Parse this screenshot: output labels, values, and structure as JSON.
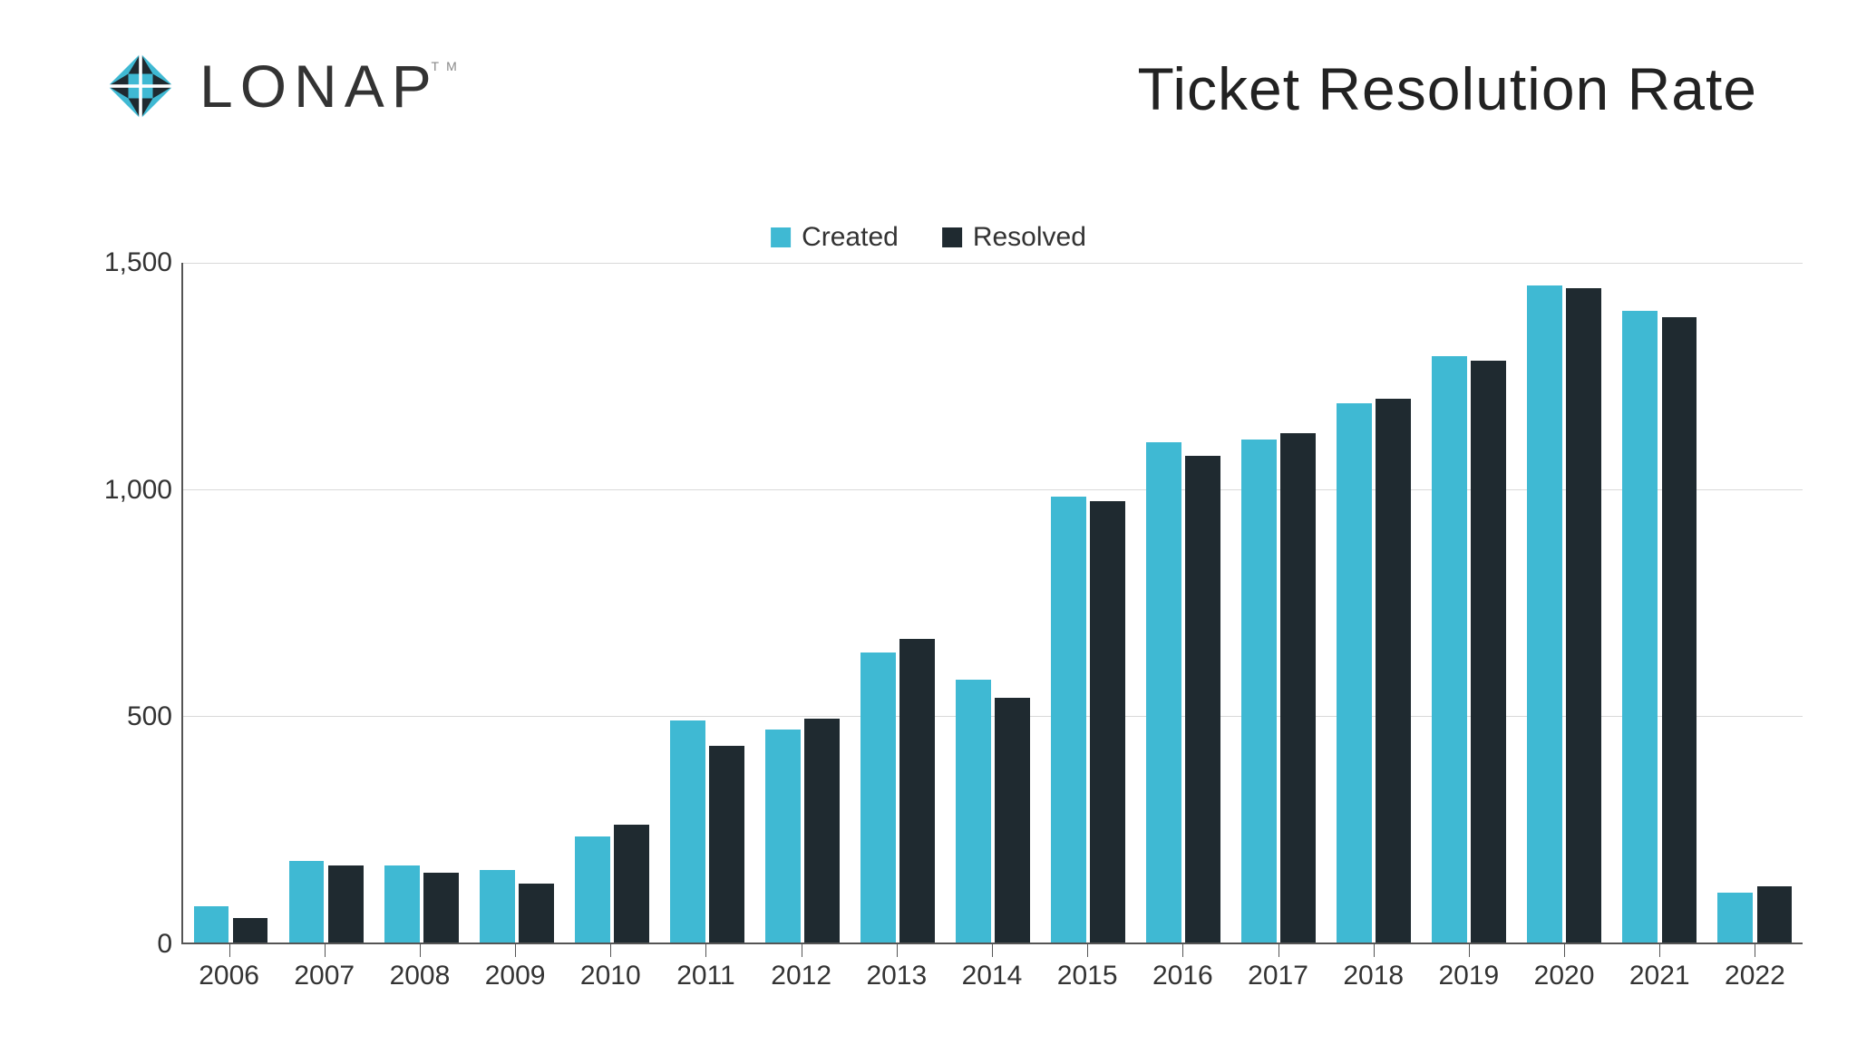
{
  "brand": {
    "name": "LONAP",
    "trademark": "TM",
    "logo_colors": {
      "teal": "#3fb9d3",
      "dark": "#1f2a30"
    }
  },
  "title": "Ticket Resolution Rate",
  "legend": {
    "items": [
      {
        "label": "Created",
        "color": "#3fb9d3"
      },
      {
        "label": "Resolved",
        "color": "#1f2a30"
      }
    ]
  },
  "chart": {
    "type": "bar-grouped",
    "background_color": "#ffffff",
    "grid_color": "#d9d9d9",
    "axis_color": "#555555",
    "text_color": "#333333",
    "font_size_axis": 30,
    "font_size_title": 66,
    "ylim": [
      0,
      1500
    ],
    "ytick_step": 500,
    "yticks": [
      "0",
      "500",
      "1,000",
      "1,500"
    ],
    "categories": [
      "2006",
      "2007",
      "2008",
      "2009",
      "2010",
      "2011",
      "2012",
      "2013",
      "2014",
      "2015",
      "2016",
      "2017",
      "2018",
      "2019",
      "2020",
      "2021",
      "2022"
    ],
    "series": [
      {
        "name": "Created",
        "color": "#3fb9d3",
        "values": [
          80,
          180,
          170,
          160,
          235,
          490,
          470,
          640,
          580,
          985,
          1105,
          1110,
          1190,
          1295,
          1450,
          1395,
          110
        ]
      },
      {
        "name": "Resolved",
        "color": "#1f2a30",
        "values": [
          55,
          170,
          155,
          130,
          260,
          435,
          495,
          670,
          540,
          975,
          1075,
          1125,
          1200,
          1285,
          1445,
          1380,
          125
        ]
      }
    ],
    "bar_group_width_ratio": 0.78,
    "bar_gap_ratio": 0.04
  }
}
